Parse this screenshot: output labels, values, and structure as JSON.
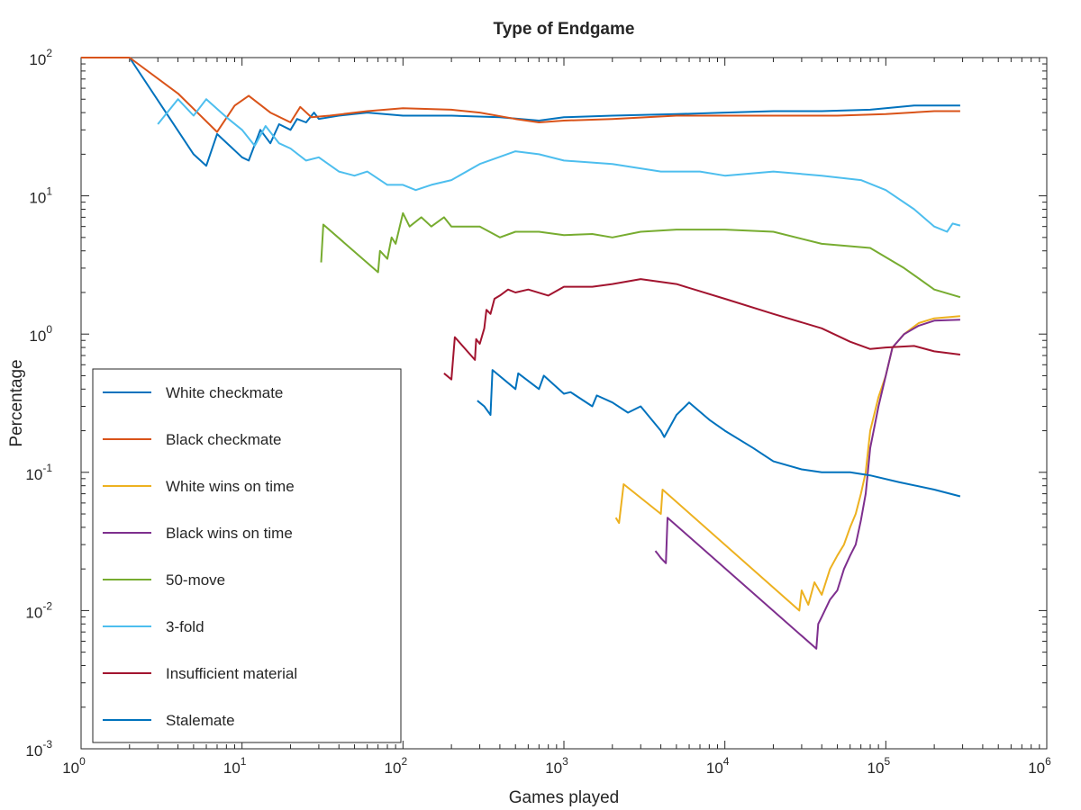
{
  "chart_data": {
    "type": "line",
    "title": "Type of Endgame",
    "xlabel": "Games played",
    "ylabel": "Percentage",
    "xscale": "log",
    "yscale": "log",
    "xlim": [
      1,
      1000000
    ],
    "ylim": [
      0.001,
      100
    ],
    "xticks": [
      {
        "value": 1,
        "base": "10",
        "exp": "0"
      },
      {
        "value": 10,
        "base": "10",
        "exp": "1"
      },
      {
        "value": 100,
        "base": "10",
        "exp": "2"
      },
      {
        "value": 1000,
        "base": "10",
        "exp": "3"
      },
      {
        "value": 10000,
        "base": "10",
        "exp": "4"
      },
      {
        "value": 100000,
        "base": "10",
        "exp": "5"
      },
      {
        "value": 1000000,
        "base": "10",
        "exp": "6"
      }
    ],
    "yticks": [
      {
        "value": 0.001,
        "base": "10",
        "exp": "-3"
      },
      {
        "value": 0.01,
        "base": "10",
        "exp": "-2"
      },
      {
        "value": 0.1,
        "base": "10",
        "exp": "-1"
      },
      {
        "value": 1,
        "base": "10",
        "exp": "0"
      },
      {
        "value": 10,
        "base": "10",
        "exp": "1"
      },
      {
        "value": 100,
        "base": "10",
        "exp": "2"
      }
    ],
    "grid": false,
    "legend_position": "bottom-left",
    "series": [
      {
        "name": "White checkmate",
        "color": "#0072BD",
        "points": [
          [
            1,
            100
          ],
          [
            2,
            100
          ],
          [
            5,
            20
          ],
          [
            6,
            16.5
          ],
          [
            7,
            28
          ],
          [
            10,
            19
          ],
          [
            11,
            18
          ],
          [
            13,
            30
          ],
          [
            15,
            24
          ],
          [
            17,
            33
          ],
          [
            20,
            30
          ],
          [
            22,
            36
          ],
          [
            25,
            34
          ],
          [
            28,
            40
          ],
          [
            30,
            36
          ],
          [
            40,
            38
          ],
          [
            60,
            40
          ],
          [
            100,
            38
          ],
          [
            200,
            38
          ],
          [
            400,
            37
          ],
          [
            700,
            35
          ],
          [
            1000,
            37
          ],
          [
            2000,
            38
          ],
          [
            5000,
            39
          ],
          [
            10000,
            40
          ],
          [
            20000,
            41
          ],
          [
            40000,
            41
          ],
          [
            80000,
            42
          ],
          [
            150000,
            45
          ],
          [
            290000,
            45
          ]
        ]
      },
      {
        "name": "Black checkmate",
        "color": "#D95319",
        "points": [
          [
            1,
            100
          ],
          [
            2,
            100
          ],
          [
            4,
            55
          ],
          [
            7,
            29
          ],
          [
            9,
            45
          ],
          [
            11,
            53
          ],
          [
            15,
            40
          ],
          [
            20,
            34
          ],
          [
            23,
            44
          ],
          [
            27,
            37
          ],
          [
            35,
            38
          ],
          [
            60,
            41
          ],
          [
            100,
            43
          ],
          [
            200,
            42
          ],
          [
            300,
            40
          ],
          [
            500,
            36
          ],
          [
            700,
            34
          ],
          [
            1000,
            35
          ],
          [
            2000,
            36
          ],
          [
            5000,
            38
          ],
          [
            10000,
            38
          ],
          [
            20000,
            38
          ],
          [
            50000,
            38
          ],
          [
            100000,
            39
          ],
          [
            200000,
            41
          ],
          [
            290000,
            41
          ]
        ]
      },
      {
        "name": "White wins on time",
        "color": "#EDB120",
        "points": [
          [
            2100,
            0.047
          ],
          [
            2200,
            0.043
          ],
          [
            2350,
            0.082
          ],
          [
            4000,
            0.05
          ],
          [
            4100,
            0.075
          ],
          [
            29000,
            0.01
          ],
          [
            30000,
            0.014
          ],
          [
            33000,
            0.011
          ],
          [
            36000,
            0.016
          ],
          [
            40000,
            0.013
          ],
          [
            45000,
            0.02
          ],
          [
            50000,
            0.025
          ],
          [
            55000,
            0.03
          ],
          [
            60000,
            0.04
          ],
          [
            65000,
            0.05
          ],
          [
            70000,
            0.07
          ],
          [
            75000,
            0.1
          ],
          [
            80000,
            0.2
          ],
          [
            90000,
            0.35
          ],
          [
            100000,
            0.5
          ],
          [
            110000,
            0.8
          ],
          [
            130000,
            1.0
          ],
          [
            160000,
            1.2
          ],
          [
            200000,
            1.3
          ],
          [
            290000,
            1.35
          ]
        ]
      },
      {
        "name": "Black wins on time",
        "color": "#7E2F8E",
        "points": [
          [
            3700,
            0.027
          ],
          [
            3800,
            0.026
          ],
          [
            4000,
            0.024
          ],
          [
            4300,
            0.022
          ],
          [
            4400,
            0.047
          ],
          [
            37000,
            0.0053
          ],
          [
            38000,
            0.008
          ],
          [
            40000,
            0.009
          ],
          [
            45000,
            0.012
          ],
          [
            50000,
            0.014
          ],
          [
            55000,
            0.02
          ],
          [
            60000,
            0.025
          ],
          [
            65000,
            0.03
          ],
          [
            70000,
            0.045
          ],
          [
            75000,
            0.07
          ],
          [
            80000,
            0.15
          ],
          [
            90000,
            0.3
          ],
          [
            100000,
            0.5
          ],
          [
            110000,
            0.8
          ],
          [
            130000,
            1.0
          ],
          [
            160000,
            1.15
          ],
          [
            200000,
            1.25
          ],
          [
            290000,
            1.27
          ]
        ]
      },
      {
        "name": "50-move",
        "color": "#77AC30",
        "points": [
          [
            31,
            3.3
          ],
          [
            32,
            6.2
          ],
          [
            70,
            2.8
          ],
          [
            72,
            4
          ],
          [
            80,
            3.5
          ],
          [
            85,
            5
          ],
          [
            90,
            4.5
          ],
          [
            100,
            7.5
          ],
          [
            110,
            6
          ],
          [
            130,
            7
          ],
          [
            150,
            6
          ],
          [
            180,
            7
          ],
          [
            200,
            6
          ],
          [
            300,
            6
          ],
          [
            400,
            5
          ],
          [
            500,
            5.5
          ],
          [
            700,
            5.5
          ],
          [
            1000,
            5.2
          ],
          [
            1500,
            5.3
          ],
          [
            2000,
            5
          ],
          [
            3000,
            5.5
          ],
          [
            5000,
            5.7
          ],
          [
            10000,
            5.7
          ],
          [
            20000,
            5.5
          ],
          [
            40000,
            4.5
          ],
          [
            80000,
            4.2
          ],
          [
            130000,
            3
          ],
          [
            200000,
            2.1
          ],
          [
            290000,
            1.85
          ]
        ]
      },
      {
        "name": "3-fold",
        "color": "#4DBEEE",
        "points": [
          [
            3,
            33
          ],
          [
            4,
            50
          ],
          [
            5,
            38
          ],
          [
            6,
            50
          ],
          [
            8,
            37
          ],
          [
            10,
            30
          ],
          [
            12,
            23
          ],
          [
            14,
            32
          ],
          [
            17,
            24
          ],
          [
            20,
            22
          ],
          [
            25,
            18
          ],
          [
            30,
            19
          ],
          [
            40,
            15
          ],
          [
            50,
            14
          ],
          [
            60,
            15
          ],
          [
            80,
            12
          ],
          [
            100,
            12
          ],
          [
            120,
            11
          ],
          [
            150,
            12
          ],
          [
            200,
            13
          ],
          [
            300,
            17
          ],
          [
            500,
            21
          ],
          [
            700,
            20
          ],
          [
            1000,
            18
          ],
          [
            2000,
            17
          ],
          [
            4000,
            15
          ],
          [
            7000,
            15
          ],
          [
            10000,
            14
          ],
          [
            20000,
            15
          ],
          [
            40000,
            14
          ],
          [
            70000,
            13
          ],
          [
            100000,
            11
          ],
          [
            150000,
            8
          ],
          [
            200000,
            6
          ],
          [
            240000,
            5.5
          ],
          [
            260000,
            6.3
          ],
          [
            290000,
            6.1
          ]
        ]
      },
      {
        "name": "Insufficient material",
        "color": "#A2142F",
        "points": [
          [
            180,
            0.52
          ],
          [
            200,
            0.47
          ],
          [
            210,
            0.95
          ],
          [
            280,
            0.65
          ],
          [
            285,
            0.92
          ],
          [
            300,
            0.85
          ],
          [
            320,
            1.1
          ],
          [
            330,
            1.5
          ],
          [
            350,
            1.4
          ],
          [
            370,
            1.8
          ],
          [
            400,
            1.9
          ],
          [
            450,
            2.1
          ],
          [
            500,
            2
          ],
          [
            600,
            2.1
          ],
          [
            800,
            1.9
          ],
          [
            1000,
            2.2
          ],
          [
            1500,
            2.2
          ],
          [
            2000,
            2.3
          ],
          [
            3000,
            2.5
          ],
          [
            5000,
            2.3
          ],
          [
            10000,
            1.8
          ],
          [
            20000,
            1.4
          ],
          [
            40000,
            1.1
          ],
          [
            60000,
            0.88
          ],
          [
            80000,
            0.78
          ],
          [
            100000,
            0.8
          ],
          [
            150000,
            0.82
          ],
          [
            200000,
            0.75
          ],
          [
            290000,
            0.71
          ]
        ]
      },
      {
        "name": "Stalemate",
        "color": "#0072BD",
        "points": [
          [
            290,
            0.33
          ],
          [
            320,
            0.3
          ],
          [
            350,
            0.26
          ],
          [
            360,
            0.55
          ],
          [
            500,
            0.4
          ],
          [
            520,
            0.52
          ],
          [
            700,
            0.4
          ],
          [
            750,
            0.5
          ],
          [
            1000,
            0.37
          ],
          [
            1100,
            0.38
          ],
          [
            1500,
            0.3
          ],
          [
            1600,
            0.36
          ],
          [
            2000,
            0.32
          ],
          [
            2500,
            0.27
          ],
          [
            3000,
            0.3
          ],
          [
            4000,
            0.2
          ],
          [
            4200,
            0.18
          ],
          [
            5000,
            0.26
          ],
          [
            6000,
            0.32
          ],
          [
            8000,
            0.24
          ],
          [
            10000,
            0.2
          ],
          [
            15000,
            0.15
          ],
          [
            20000,
            0.12
          ],
          [
            30000,
            0.105
          ],
          [
            40000,
            0.1
          ],
          [
            60000,
            0.1
          ],
          [
            80000,
            0.095
          ],
          [
            120000,
            0.085
          ],
          [
            200000,
            0.075
          ],
          [
            290000,
            0.067
          ]
        ]
      }
    ]
  }
}
